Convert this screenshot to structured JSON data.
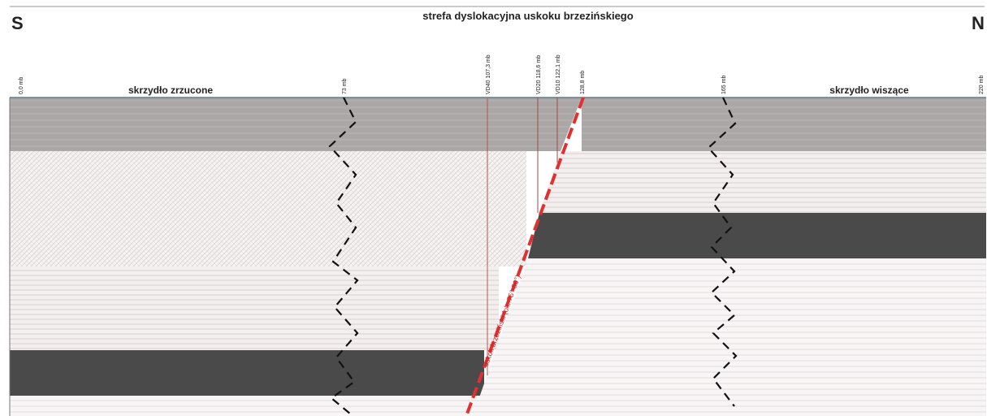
{
  "title": "strefa dyslokacyjna uskoku brzezińskiego",
  "compass": {
    "south": "S",
    "north": "N"
  },
  "wings": {
    "left": "skrzydło zrzucone",
    "right": "skrzydło wiszące"
  },
  "distance_labels": [
    "0,0 mb",
    "73 mb",
    "VD40 107,3 mb",
    "VD20 118,6 mb",
    "VD10 122,1 mb",
    "128,8 mb",
    "165 mb",
    "220 mb"
  ],
  "fault_label": "uskok brzeziński (ok. 75°-80°)",
  "colors": {
    "dark_layer": "#4a4a4a",
    "grey_layer": "#aaa6a6",
    "fault": "#e03030",
    "boreline": "#c05050"
  }
}
